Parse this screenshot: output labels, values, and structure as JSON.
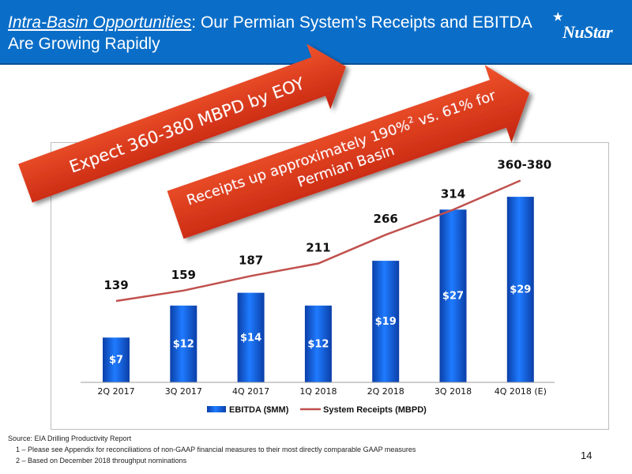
{
  "header": {
    "title_emphasis": "Intra-Basin Opportunities",
    "title_rest": ": Our Permian System’s Receipts and EBITDA Are Growing Rapidly",
    "logo_text": "NuStar"
  },
  "callouts": {
    "arrow1": "Expect 360-380 MBPD by EOY",
    "arrow2_line1": "Receipts up approximately 190%",
    "arrow2_sup": "2",
    "arrow2_line1_end": " vs. 61% for",
    "arrow2_line2": "Permian Basin"
  },
  "chart_data": {
    "type": "bar",
    "categories": [
      "2Q 2017",
      "3Q 2017",
      "4Q 2017",
      "1Q 2018",
      "2Q 2018",
      "3Q 2018",
      "4Q 2018 (E)"
    ],
    "series": [
      {
        "name": "EBITDA ($MM)",
        "kind": "bar",
        "values": [
          7,
          12,
          14,
          12,
          19,
          27,
          29
        ],
        "labels": [
          "$7",
          "$12",
          "$14",
          "$12",
          "$19",
          "$27",
          "$29"
        ],
        "color": "#1565d8"
      },
      {
        "name": "System Receipts (MBPD)",
        "kind": "line",
        "values": [
          139,
          159,
          187,
          211,
          266,
          314,
          370
        ],
        "labels": [
          "139",
          "159",
          "187",
          "211",
          "266",
          "314",
          "360-380"
        ],
        "color": "#c0504d"
      }
    ],
    "legend_position": "bottom",
    "grid": false
  },
  "footer": {
    "source": "Source: EIA Drilling Productivity Report",
    "note1": "1 – Please see Appendix for reconciliations of non-GAAP financial measures to their most directly comparable GAAP measures",
    "note2": "2 – Based on December 2018 throughput nominations"
  },
  "page_number": "14"
}
